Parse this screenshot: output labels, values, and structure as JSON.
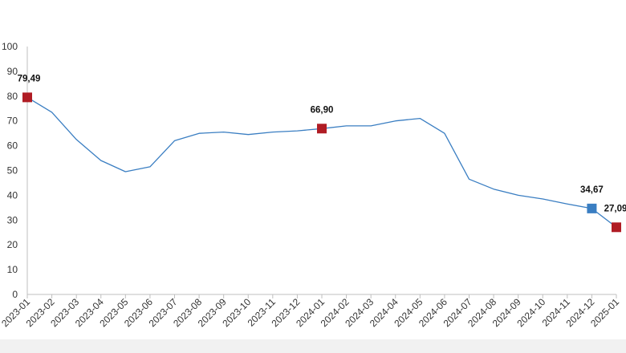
{
  "chart_data": {
    "type": "line",
    "title": "",
    "xlabel": "",
    "ylabel": "",
    "ylim": [
      0,
      100
    ],
    "yticks": [
      0,
      10,
      20,
      30,
      40,
      50,
      60,
      70,
      80,
      90,
      100
    ],
    "grid": false,
    "legend": "none",
    "categories": [
      "2023-01",
      "2023-02",
      "2023-03",
      "2023-04",
      "2023-05",
      "2023-06",
      "2023-07",
      "2023-08",
      "2023-09",
      "2023-10",
      "2023-11",
      "2023-12",
      "2024-01",
      "2024-02",
      "2024-03",
      "2024-04",
      "2024-05",
      "2024-06",
      "2024-07",
      "2024-08",
      "2024-09",
      "2024-10",
      "2024-11",
      "2024-12",
      "2025-01"
    ],
    "series": [
      {
        "values": [
          79.49,
          73.5,
          62.5,
          54.0,
          49.5,
          51.5,
          62.0,
          65.0,
          65.5,
          64.5,
          65.5,
          66.0,
          66.9,
          68.0,
          68.0,
          70.0,
          71.0,
          65.0,
          46.5,
          42.5,
          40.0,
          38.5,
          36.5,
          34.67,
          27.09
        ],
        "color": "#3a7ec2"
      }
    ],
    "highlights": [
      {
        "index": 0,
        "label": "79,49",
        "color": "#b01c24"
      },
      {
        "index": 12,
        "label": "66,90",
        "color": "#b01c24"
      },
      {
        "index": 23,
        "label": "34,67",
        "color": "#3a7ec2"
      },
      {
        "index": 24,
        "label": "27,09",
        "color": "#b01c24"
      }
    ],
    "colors": {
      "axis": "#bfbfbf",
      "footer": "#f1f1f1"
    }
  }
}
